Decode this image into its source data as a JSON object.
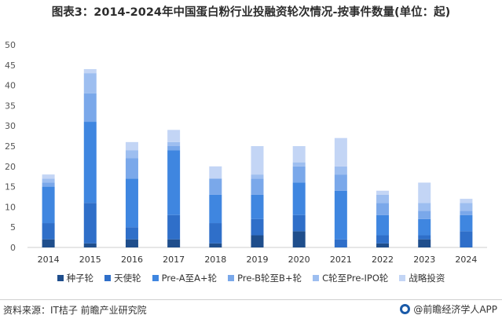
{
  "title": "图表3：2014-2024年中国蛋白粉行业投融资轮次情况-按事件数量(单位：起)",
  "footer": {
    "source": "资料来源：IT桔子 前瞻产业研究院",
    "brand": "@前瞻经济学人APP"
  },
  "colors": {
    "axis": "#cccccc",
    "tick_text": "#555555"
  },
  "chart_data": {
    "type": "bar",
    "stacked": true,
    "title": "图表3：2014-2024年中国蛋白粉行业投融资轮次情况-按事件数量(单位：起)",
    "categories": [
      "2014",
      "2015",
      "2016",
      "2017",
      "2018",
      "2019",
      "2020",
      "2021",
      "2022",
      "2023",
      "2024"
    ],
    "ylim": [
      0,
      50
    ],
    "yticks": [
      0,
      5,
      10,
      15,
      20,
      25,
      30,
      35,
      40,
      45,
      50
    ],
    "legend_position": "bottom",
    "series": [
      {
        "name": "种子轮",
        "color": "#1f4e8c",
        "values": [
          2,
          1,
          2,
          2,
          1,
          3,
          4,
          0,
          1,
          2,
          0
        ]
      },
      {
        "name": "天使轮",
        "color": "#2f6fc9",
        "values": [
          4,
          10,
          3,
          6,
          5,
          4,
          4,
          2,
          2,
          1,
          4
        ]
      },
      {
        "name": "Pre-A至A+轮",
        "color": "#3f86e0",
        "values": [
          9,
          20,
          12,
          16,
          7,
          6,
          8,
          12,
          5,
          4,
          4
        ]
      },
      {
        "name": "Pre-B轮至B+轮",
        "color": "#7aa8ea",
        "values": [
          1,
          7,
          5,
          1,
          4,
          4,
          4,
          4,
          3,
          2,
          1
        ]
      },
      {
        "name": "C轮至Pre-IPO轮",
        "color": "#9dbef0",
        "values": [
          1,
          5,
          2,
          1,
          0,
          1,
          1,
          2,
          2,
          2,
          2
        ]
      },
      {
        "name": "战略投资",
        "color": "#c3d5f5",
        "values": [
          1,
          1,
          2,
          3,
          3,
          7,
          4,
          7,
          1,
          5,
          1
        ]
      }
    ]
  }
}
